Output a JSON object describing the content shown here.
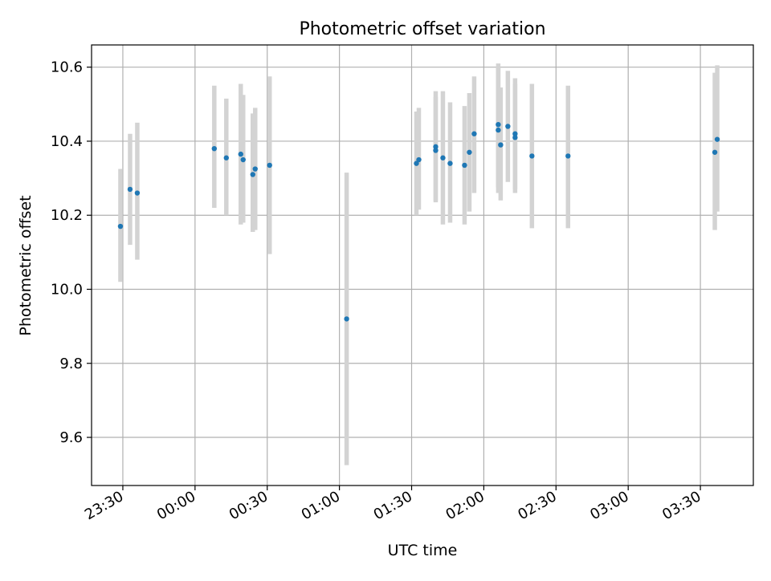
{
  "chart_data": {
    "type": "scatter",
    "title": "Photometric offset variation",
    "xlabel": "UTC time",
    "ylabel": "Photometric offset",
    "x_unit": "time of day (UTC); times after midnight are on the following day",
    "xlim": [
      "23:17",
      "03:52"
    ],
    "ylim": [
      9.47,
      10.66
    ],
    "x_ticks": [
      "23:30",
      "00:00",
      "00:30",
      "01:00",
      "01:30",
      "02:00",
      "02:30",
      "03:00",
      "03:30"
    ],
    "y_ticks": [
      "9.6",
      "9.8",
      "10.0",
      "10.2",
      "10.4",
      "10.6"
    ],
    "grid": true,
    "marker_color": "#1f77b4",
    "errorbar_color": "#d3d3d3",
    "points": [
      {
        "x": "23:29",
        "y": 10.17,
        "ylow": 10.02,
        "yhigh": 10.325
      },
      {
        "x": "23:33",
        "y": 10.27,
        "ylow": 10.12,
        "yhigh": 10.42
      },
      {
        "x": "23:36",
        "y": 10.26,
        "ylow": 10.08,
        "yhigh": 10.45
      },
      {
        "x": "00:08",
        "y": 10.38,
        "ylow": 10.22,
        "yhigh": 10.55
      },
      {
        "x": "00:13",
        "y": 10.355,
        "ylow": 10.2,
        "yhigh": 10.515
      },
      {
        "x": "00:19",
        "y": 10.365,
        "ylow": 10.175,
        "yhigh": 10.555
      },
      {
        "x": "00:20",
        "y": 10.35,
        "ylow": 10.18,
        "yhigh": 10.525
      },
      {
        "x": "00:24",
        "y": 10.31,
        "ylow": 10.155,
        "yhigh": 10.475
      },
      {
        "x": "00:25",
        "y": 10.325,
        "ylow": 10.16,
        "yhigh": 10.49
      },
      {
        "x": "00:31",
        "y": 10.335,
        "ylow": 10.095,
        "yhigh": 10.575
      },
      {
        "x": "01:03",
        "y": 9.92,
        "ylow": 9.525,
        "yhigh": 10.315
      },
      {
        "x": "01:32",
        "y": 10.34,
        "ylow": 10.2,
        "yhigh": 10.48
      },
      {
        "x": "01:33",
        "y": 10.35,
        "ylow": 10.215,
        "yhigh": 10.49
      },
      {
        "x": "01:40",
        "y": 10.385,
        "ylow": 10.235,
        "yhigh": 10.535
      },
      {
        "x": "01:40",
        "y": 10.375,
        "ylow": 10.24,
        "yhigh": 10.52
      },
      {
        "x": "01:43",
        "y": 10.355,
        "ylow": 10.175,
        "yhigh": 10.535
      },
      {
        "x": "01:46",
        "y": 10.34,
        "ylow": 10.18,
        "yhigh": 10.505
      },
      {
        "x": "01:52",
        "y": 10.335,
        "ylow": 10.175,
        "yhigh": 10.495
      },
      {
        "x": "01:54",
        "y": 10.37,
        "ylow": 10.21,
        "yhigh": 10.53
      },
      {
        "x": "01:56",
        "y": 10.42,
        "ylow": 10.26,
        "yhigh": 10.575
      },
      {
        "x": "02:06",
        "y": 10.43,
        "ylow": 10.26,
        "yhigh": 10.6
      },
      {
        "x": "02:06",
        "y": 10.445,
        "ylow": 10.275,
        "yhigh": 10.61
      },
      {
        "x": "02:07",
        "y": 10.39,
        "ylow": 10.24,
        "yhigh": 10.545
      },
      {
        "x": "02:10",
        "y": 10.44,
        "ylow": 10.29,
        "yhigh": 10.59
      },
      {
        "x": "02:13",
        "y": 10.42,
        "ylow": 10.27,
        "yhigh": 10.57
      },
      {
        "x": "02:13",
        "y": 10.41,
        "ylow": 10.26,
        "yhigh": 10.555
      },
      {
        "x": "02:20",
        "y": 10.36,
        "ylow": 10.165,
        "yhigh": 10.555
      },
      {
        "x": "02:35",
        "y": 10.36,
        "ylow": 10.165,
        "yhigh": 10.55
      },
      {
        "x": "03:36",
        "y": 10.37,
        "ylow": 10.16,
        "yhigh": 10.585
      },
      {
        "x": "03:37",
        "y": 10.405,
        "ylow": 10.21,
        "yhigh": 10.605
      }
    ]
  }
}
